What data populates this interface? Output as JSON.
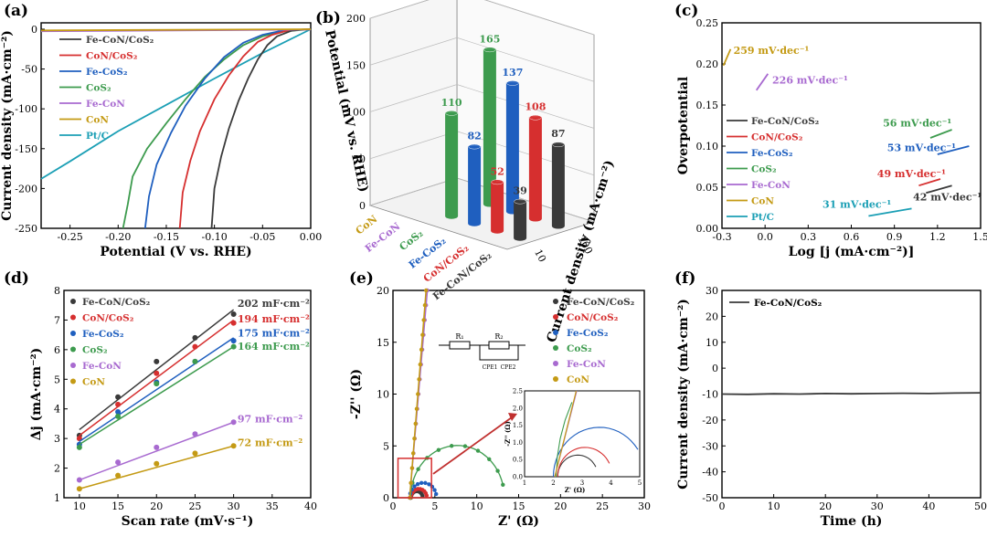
{
  "panels": [
    {
      "id": "a",
      "label": "(a)",
      "xlabel": "Potential (V vs. RHE)",
      "ylabel": "Current density (mA·cm⁻²)"
    },
    {
      "id": "b",
      "label": "(b)",
      "zlabel": "Potential (mV vs. RHE)",
      "depth_label": "Current density (mA·cm⁻²)"
    },
    {
      "id": "c",
      "label": "(c)",
      "xlabel": "Log [j (mA·cm⁻²)]",
      "ylabel": "Overpotential"
    },
    {
      "id": "d",
      "label": "(d)",
      "xlabel": "Scan rate (mV·s⁻¹)",
      "ylabel": "Δj (mA·cm⁻²)"
    },
    {
      "id": "e",
      "label": "(e)",
      "xlabel": "Z' (Ω)",
      "ylabel": "-Z'' (Ω)"
    },
    {
      "id": "f",
      "label": "(f)",
      "xlabel": "Time (h)",
      "ylabel": "Current density (mA·cm⁻²)"
    }
  ],
  "colors": {
    "Fe-CoN/CoS2": "#3a3a3a",
    "CoN/CoS2": "#d62f2f",
    "Fe-CoS2": "#1f5fbf",
    "CoS2": "#3d9b4e",
    "Fe-CoN": "#a86ad0",
    "CoN": "#c49a14",
    "Pt/C": "#1b9fb5"
  },
  "legend_a": [
    {
      "key": "Fe-CoN/CoS2",
      "label": "Fe-CoN/CoS₂"
    },
    {
      "key": "CoN/CoS2",
      "label": "CoN/CoS₂"
    },
    {
      "key": "Fe-CoS2",
      "label": "Fe-CoS₂"
    },
    {
      "key": "CoS2",
      "label": "CoS₂"
    },
    {
      "key": "Fe-CoN",
      "label": "Fe-CoN"
    },
    {
      "key": "CoN",
      "label": "CoN"
    },
    {
      "key": "Pt/C",
      "label": "Pt/C"
    }
  ],
  "chart_data": [
    {
      "panel": "a",
      "type": "line",
      "xlim": [
        -0.28,
        0.0
      ],
      "ylim": [
        -250,
        8
      ],
      "xticks": [
        "-0.25",
        "-0.20",
        "-0.15",
        "-0.10",
        "-0.05",
        "0.00"
      ],
      "yticks": [
        "0",
        "-50",
        "-100",
        "-150",
        "-200",
        "-250"
      ],
      "series": [
        {
          "key": "Pt/C",
          "x": [
            -0.28,
            -0.25,
            -0.2,
            -0.15,
            -0.1,
            -0.05,
            0.0
          ],
          "y": [
            -188,
            -166,
            -128,
            -95,
            -62,
            -30,
            0
          ]
        },
        {
          "key": "CoS2",
          "x": [
            -0.195,
            -0.19,
            -0.185,
            -0.17,
            -0.15,
            -0.13,
            -0.11,
            -0.09,
            -0.07,
            -0.05,
            -0.03,
            -0.01,
            0.0
          ],
          "y": [
            -250,
            -220,
            -185,
            -150,
            -118,
            -88,
            -60,
            -38,
            -20,
            -9,
            -3,
            -1,
            0
          ]
        },
        {
          "key": "Fe-CoS2",
          "x": [
            -0.172,
            -0.168,
            -0.16,
            -0.145,
            -0.13,
            -0.11,
            -0.09,
            -0.07,
            -0.05,
            -0.03,
            -0.01,
            0.0
          ],
          "y": [
            -250,
            -210,
            -170,
            -130,
            -96,
            -62,
            -35,
            -17,
            -7,
            -2,
            -0.5,
            0
          ]
        },
        {
          "key": "CoN/CoS2",
          "x": [
            -0.136,
            -0.133,
            -0.125,
            -0.115,
            -0.1,
            -0.085,
            -0.07,
            -0.055,
            -0.04,
            -0.025,
            -0.01,
            0.0
          ],
          "y": [
            -250,
            -205,
            -165,
            -128,
            -88,
            -58,
            -34,
            -16,
            -7,
            -2,
            -0.5,
            0
          ]
        },
        {
          "key": "Fe-CoN/CoS2",
          "x": [
            -0.103,
            -0.1,
            -0.093,
            -0.085,
            -0.075,
            -0.065,
            -0.055,
            -0.045,
            -0.035,
            -0.02,
            -0.01,
            0.0
          ],
          "y": [
            -250,
            -200,
            -160,
            -125,
            -90,
            -62,
            -38,
            -20,
            -9,
            -2,
            -0.5,
            0
          ]
        },
        {
          "key": "Fe-CoN",
          "x": [
            -0.28,
            0.0
          ],
          "y": [
            -2.5,
            -0.5
          ]
        },
        {
          "key": "CoN",
          "x": [
            -0.28,
            0.0
          ],
          "y": [
            -1.5,
            0
          ]
        }
      ]
    },
    {
      "panel": "b",
      "type": "bar",
      "zlim": [
        0,
        200
      ],
      "zticks": [
        "0",
        "50",
        "100",
        "150",
        "200"
      ],
      "sample_ticks": [
        "CoN",
        "Fe-CoN",
        "CoS₂",
        "Fe-CoS₂",
        "CoN/CoS₂",
        "Fe-CoN/CoS₂"
      ],
      "depth_ticks": [
        "10",
        "100"
      ],
      "series": [
        {
          "name": "10",
          "values": [
            {
              "key": "CoS2",
              "v": 110
            },
            {
              "key": "Fe-CoS2",
              "v": 82
            },
            {
              "key": "CoN/CoS2",
              "v": 52
            },
            {
              "key": "Fe-CoN/CoS2",
              "v": 39
            }
          ]
        },
        {
          "name": "100",
          "values": [
            {
              "key": "CoS2",
              "v": 165
            },
            {
              "key": "Fe-CoS2",
              "v": 137
            },
            {
              "key": "CoN/CoS2",
              "v": 108
            },
            {
              "key": "Fe-CoN/CoS2",
              "v": 87
            }
          ]
        }
      ]
    },
    {
      "panel": "c",
      "type": "line",
      "xlim": [
        -0.3,
        1.5
      ],
      "ylim": [
        0,
        0.25
      ],
      "xticks": [
        "-0.3",
        "0.0",
        "0.3",
        "0.6",
        "0.9",
        "1.2",
        "1.5"
      ],
      "yticks": [
        "0.00",
        "0.05",
        "0.10",
        "0.15",
        "0.20",
        "0.25"
      ],
      "series": [
        {
          "key": "CoN",
          "x": [
            -0.29,
            -0.24
          ],
          "y": [
            0.198,
            0.218
          ],
          "label": "259 mV·dec⁻¹"
        },
        {
          "key": "Fe-CoN",
          "x": [
            -0.06,
            0.02
          ],
          "y": [
            0.168,
            0.188
          ],
          "label": "226 mV·dec⁻¹"
        },
        {
          "key": "CoS2",
          "x": [
            1.15,
            1.3
          ],
          "y": [
            0.11,
            0.12
          ],
          "label": "56 mV·dec⁻¹"
        },
        {
          "key": "Fe-CoS2",
          "x": [
            1.2,
            1.42
          ],
          "y": [
            0.09,
            0.1
          ],
          "label": "53 mV·dec⁻¹"
        },
        {
          "key": "CoN/CoS2",
          "x": [
            1.07,
            1.22
          ],
          "y": [
            0.052,
            0.06
          ],
          "label": "49 mV·dec⁻¹"
        },
        {
          "key": "Fe-CoN/CoS2",
          "x": [
            1.12,
            1.3
          ],
          "y": [
            0.043,
            0.052
          ],
          "label": "42 mV·dec⁻¹"
        },
        {
          "key": "Pt/C",
          "x": [
            0.72,
            1.02
          ],
          "y": [
            0.015,
            0.024
          ],
          "label": "31 mV·dec⁻¹"
        }
      ]
    },
    {
      "panel": "d",
      "type": "scatter",
      "xlim": [
        8,
        40
      ],
      "ylim": [
        1,
        8
      ],
      "xticks": [
        "10",
        "15",
        "20",
        "25",
        "30",
        "35",
        "40"
      ],
      "yticks": [
        "1",
        "2",
        "3",
        "4",
        "5",
        "6",
        "7",
        "8"
      ],
      "x": [
        10,
        15,
        20,
        25,
        30
      ],
      "series": [
        {
          "key": "Fe-CoN/CoS2",
          "y": [
            3.1,
            4.4,
            5.6,
            6.4,
            7.2
          ],
          "fit": [
            3.3,
            7.35
          ],
          "label": "202 mF·cm⁻²"
        },
        {
          "key": "CoN/CoS2",
          "y": [
            3.0,
            4.15,
            5.2,
            6.1,
            6.9
          ],
          "fit": [
            3.1,
            7.0
          ],
          "label": "194 mF·cm⁻²"
        },
        {
          "key": "Fe-CoS2",
          "y": [
            2.8,
            3.9,
            4.9,
            5.6,
            6.3
          ],
          "fit": [
            2.9,
            6.4
          ],
          "label": "175 mF·cm⁻²"
        },
        {
          "key": "CoS2",
          "y": [
            2.7,
            3.75,
            4.85,
            5.6,
            6.1
          ],
          "fit": [
            2.8,
            6.1
          ],
          "label": "164 mF·cm⁻²"
        },
        {
          "key": "Fe-CoN",
          "y": [
            1.6,
            2.2,
            2.7,
            3.15,
            3.55
          ],
          "fit": [
            1.6,
            3.55
          ],
          "label": "97 mF·cm⁻²"
        },
        {
          "key": "CoN",
          "y": [
            1.3,
            1.75,
            2.15,
            2.5,
            2.75
          ],
          "fit": [
            1.3,
            2.75
          ],
          "label": "72 mF·cm⁻²"
        }
      ]
    },
    {
      "panel": "e",
      "type": "scatter",
      "xlim": [
        0,
        30
      ],
      "ylim": [
        0,
        20
      ],
      "xticks": [
        "0",
        "5",
        "10",
        "15",
        "20",
        "25",
        "30"
      ],
      "yticks": [
        "0",
        "5",
        "10",
        "15",
        "20"
      ],
      "inset": {
        "xlim": [
          1,
          5
        ],
        "ylim": [
          0,
          2.5
        ],
        "xticks": [
          "1",
          "2",
          "3",
          "4",
          "5"
        ],
        "yticks": [
          "0.0",
          "0.5",
          "1.0",
          "1.5",
          "2.0",
          "2.5"
        ],
        "xlabel": "Z' (Ω)",
        "ylabel": "-Z'' (Ω)"
      },
      "circuit": {
        "r1": "R₁",
        "r2": "R₂",
        "cpe1": "CPE1",
        "cpe2": "CPE2"
      },
      "series": [
        {
          "key": "Fe-CoN/CoS2",
          "center": 2.85,
          "radius": 0.7
        },
        {
          "key": "CoN/CoS2",
          "center": 3.1,
          "radius": 0.95
        },
        {
          "key": "Fe-CoS2",
          "center": 3.6,
          "radius": 1.6
        },
        {
          "key": "CoS2",
          "center": 7.7,
          "radius": 5.6
        },
        {
          "key": "Fe-CoN",
          "line": [
            [
              2.0,
              0
            ],
            [
              4.1,
              20
            ]
          ]
        },
        {
          "key": "CoN",
          "line": [
            [
              2.0,
              0
            ],
            [
              3.95,
              20
            ]
          ]
        }
      ]
    },
    {
      "panel": "f",
      "type": "line",
      "xlim": [
        0,
        50
      ],
      "ylim": [
        -50,
        30
      ],
      "xticks": [
        "0",
        "10",
        "20",
        "30",
        "40",
        "50"
      ],
      "yticks": [
        "30",
        "20",
        "10",
        "0",
        "-10",
        "-20",
        "-30",
        "-40",
        "-50"
      ],
      "series": [
        {
          "key": "Fe-CoN/CoS2",
          "name": "Fe-CoN/CoS₂",
          "x": [
            0,
            5,
            10,
            15,
            20,
            25,
            30,
            35,
            40,
            45,
            50
          ],
          "y": [
            -10.0,
            -10.1,
            -9.9,
            -10.0,
            -9.8,
            -9.9,
            -9.8,
            -9.7,
            -9.8,
            -9.6,
            -9.5
          ]
        }
      ]
    }
  ]
}
